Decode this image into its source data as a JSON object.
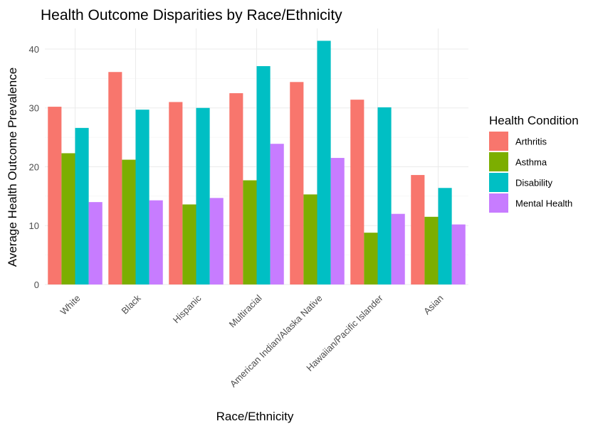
{
  "chart_data": {
    "type": "bar",
    "title": "Health Outcome Disparities by Race/Ethnicity",
    "xlabel": "Race/Ethnicity",
    "ylabel": "Average Health Outcome Prevalence",
    "categories": [
      "White",
      "Black",
      "Hispanic",
      "Multiracial",
      "American Indian/Alaska Native",
      "Hawaiian/Pacific Islander",
      "Asian"
    ],
    "series": [
      {
        "name": "Arthritis",
        "color": "#F8766D",
        "values": [
          30.2,
          36.1,
          31.0,
          32.5,
          34.4,
          31.4,
          18.6
        ]
      },
      {
        "name": "Asthma",
        "color": "#7CAE00",
        "values": [
          22.3,
          21.2,
          13.6,
          17.7,
          15.3,
          8.8,
          11.5
        ]
      },
      {
        "name": "Disability",
        "color": "#00BFC4",
        "values": [
          26.6,
          29.7,
          30.0,
          37.1,
          41.4,
          30.1,
          16.4
        ]
      },
      {
        "name": "Mental Health",
        "color": "#C77CFF",
        "values": [
          14.0,
          14.3,
          14.7,
          23.9,
          21.5,
          12.0,
          10.2
        ]
      }
    ],
    "ylim": [
      0,
      43.5
    ],
    "yticks": [
      0,
      10,
      20,
      30,
      40
    ],
    "legend_title": "Health Condition",
    "legend_position": "right",
    "grid": true
  }
}
